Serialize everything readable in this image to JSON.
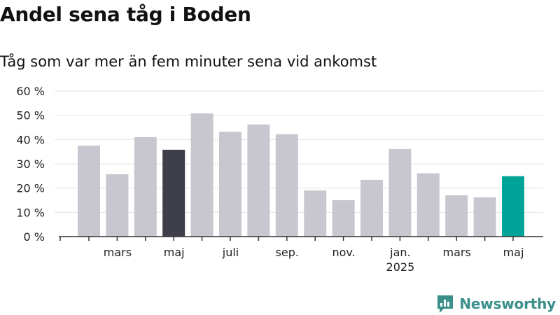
{
  "header": {
    "title": "Andel sena tåg i Boden",
    "subtitle": "Tåg som var mer än fem minuter sena vid ankomst"
  },
  "brand": {
    "name": "Newsworthy",
    "icon": "newsworthy-logo-icon",
    "color": "#3a8f8a"
  },
  "colors": {
    "default_bar": "#c8c7d0",
    "highlight_previous": "#3f3e4b",
    "highlight_current": "#00a398",
    "gridline": "#e3e3e3",
    "axis": "#333333"
  },
  "chart_data": {
    "type": "bar",
    "title": "Andel sena tåg i Boden",
    "subtitle": "Tåg som var mer än fem minuter sena vid ankomst",
    "ylim": [
      0,
      60
    ],
    "yticks": [
      0,
      10,
      20,
      30,
      40,
      50,
      60
    ],
    "ytick_labels": [
      "0 %",
      "10 %",
      "20 %",
      "30 %",
      "40 %",
      "50 %",
      "60 %"
    ],
    "grid": true,
    "categories": [
      "2024-02",
      "2024-03",
      "2024-04",
      "2024-05",
      "2024-06",
      "2024-07",
      "2024-08",
      "2024-09",
      "2024-10",
      "2024-11",
      "2024-12",
      "2025-01",
      "2025-02",
      "2025-03",
      "2025-04",
      "2025-05"
    ],
    "values": [
      37.5,
      25.7,
      41.0,
      35.8,
      50.8,
      43.2,
      46.2,
      42.2,
      19.0,
      15.0,
      23.4,
      36.1,
      26.1,
      17.0,
      16.2,
      24.9
    ],
    "highlight": {
      "2024-05": "highlight_previous",
      "2025-05": "highlight_current"
    },
    "xtick_labels": [
      {
        "index": 1,
        "label": "mars"
      },
      {
        "index": 3,
        "label": "maj"
      },
      {
        "index": 5,
        "label": "juli"
      },
      {
        "index": 7,
        "label": "sep."
      },
      {
        "index": 9,
        "label": "nov."
      },
      {
        "index": 11,
        "label": "jan.",
        "sublabel": "2025"
      },
      {
        "index": 13,
        "label": "mars"
      },
      {
        "index": 15,
        "label": "maj"
      }
    ]
  }
}
